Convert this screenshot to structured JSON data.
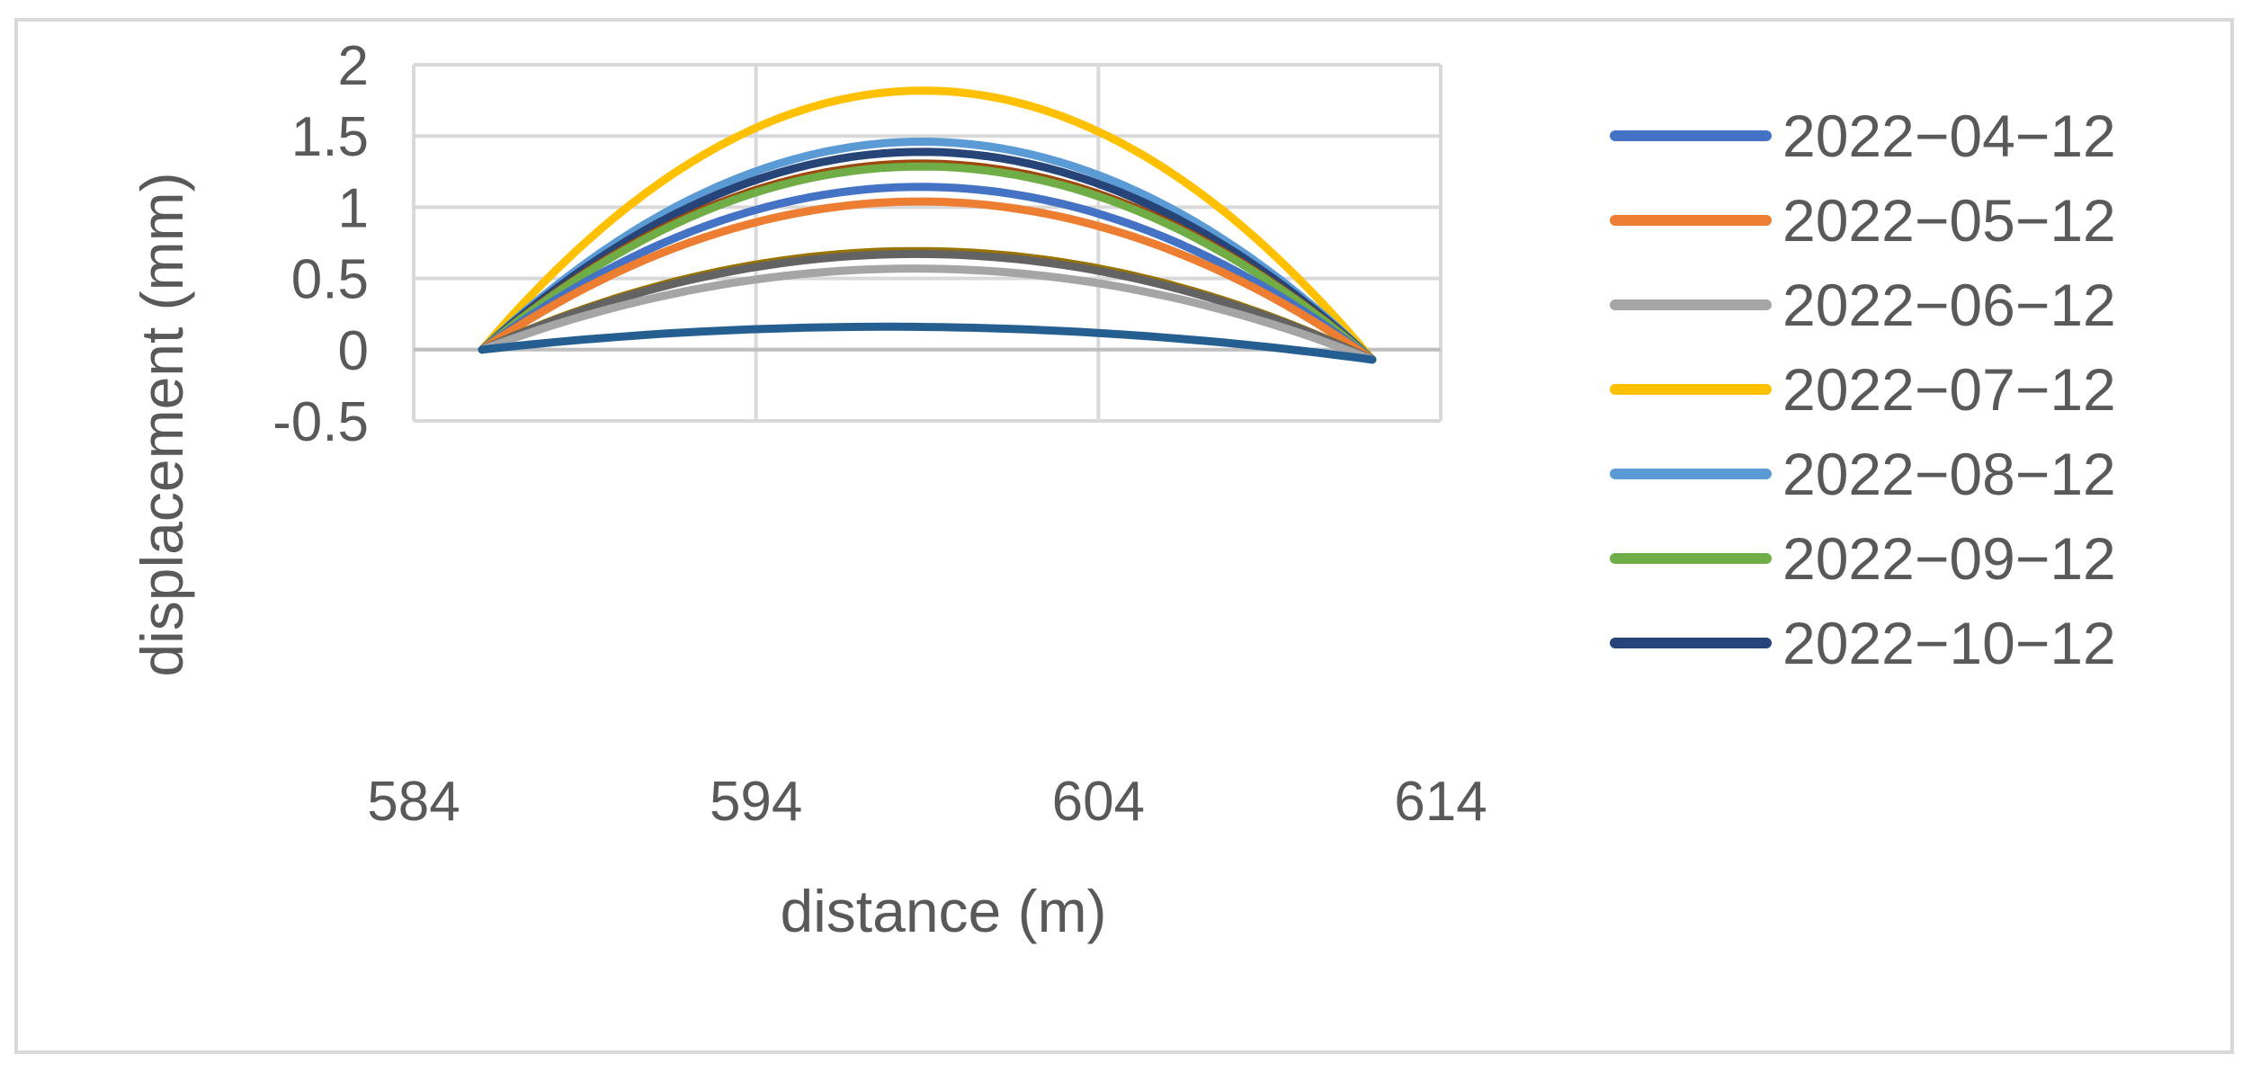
{
  "chart_data": {
    "type": "line",
    "xlabel": "distance (m)",
    "ylabel": "displacement (mm)",
    "xlim": [
      584,
      614
    ],
    "ylim": [
      -0.5,
      2
    ],
    "xticks": [
      "584",
      "594",
      "604",
      "614"
    ],
    "yticks": [
      "-0.5",
      "0",
      "0.5",
      "1",
      "1.5",
      "2"
    ],
    "grid": true,
    "legend_position": "right",
    "series": [
      {
        "name": "2022−04−12",
        "color": "#4472c4",
        "legend": true,
        "x": [
          586,
          597,
          612
        ],
        "y": [
          0,
          1.12,
          -0.07
        ]
      },
      {
        "name": "2022−05−12",
        "color": "#ed7d31",
        "legend": true,
        "x": [
          586,
          597,
          612
        ],
        "y": [
          0,
          1.02,
          -0.07
        ]
      },
      {
        "name": "2022−06−12",
        "color": "#a5a5a5",
        "legend": true,
        "x": [
          586,
          597,
          612
        ],
        "y": [
          0,
          0.56,
          -0.07
        ]
      },
      {
        "name": "2022−07−12",
        "color": "#ffc000",
        "legend": true,
        "x": [
          586,
          597,
          612
        ],
        "y": [
          0,
          1.78,
          -0.07
        ]
      },
      {
        "name": "2022−08−12",
        "color": "#5b9bd5",
        "legend": true,
        "x": [
          586,
          597,
          612
        ],
        "y": [
          0,
          1.43,
          -0.07
        ]
      },
      {
        "name": "2022−09−12",
        "color": "#70ad47",
        "legend": true,
        "x": [
          586,
          597,
          612
        ],
        "y": [
          0,
          1.26,
          -0.07
        ]
      },
      {
        "name": "2022−10−12",
        "color": "#264478",
        "legend": true,
        "x": [
          586,
          597,
          612
        ],
        "y": [
          0,
          1.36,
          -0.07
        ]
      },
      {
        "name": "",
        "color": "#9e480e",
        "legend": false,
        "x": [
          586,
          597,
          612
        ],
        "y": [
          0,
          1.28,
          -0.07
        ]
      },
      {
        "name": "",
        "color": "#636363",
        "legend": false,
        "x": [
          586,
          597,
          612
        ],
        "y": [
          0,
          0.66,
          -0.07
        ]
      },
      {
        "name": "",
        "color": "#997300",
        "legend": false,
        "x": [
          586,
          597,
          612
        ],
        "y": [
          0,
          0.68,
          -0.07
        ]
      },
      {
        "name": "",
        "color": "#255e91",
        "legend": false,
        "x": [
          586,
          597,
          612
        ],
        "y": [
          0,
          0.16,
          -0.07
        ]
      }
    ]
  }
}
